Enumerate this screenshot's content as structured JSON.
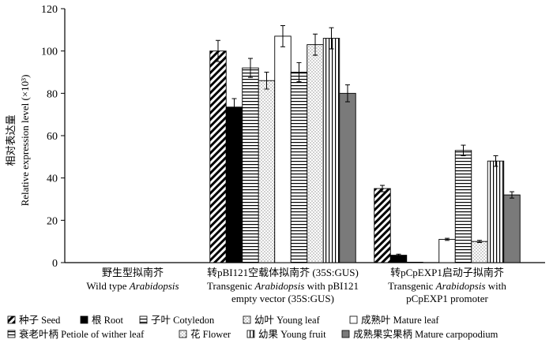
{
  "chart_data": {
    "type": "bar",
    "ylabel_cn": "相对表达量",
    "ylabel_en": "Relative expression level (×10³)",
    "ylim": [
      0,
      120
    ],
    "yticks": [
      0,
      20,
      40,
      60,
      80,
      100,
      120
    ],
    "groups": [
      {
        "cn": "野生型拟南芥",
        "en_lines": [
          [
            "Wild type ",
            "Arabidopsis",
            ""
          ]
        ]
      },
      {
        "cn": "转pBI121空载体拟南芥 (35S:GUS)",
        "en_lines": [
          [
            "Transgenic ",
            "Arabidopsis",
            " with pBI121"
          ],
          [
            "empty vector (35S:GUS)",
            "",
            ""
          ]
        ]
      },
      {
        "cn": "转pCpEXP1启动子拟南芥",
        "en_lines": [
          [
            "Transgenic ",
            "Arabidopsis",
            " with"
          ],
          [
            "pCpEXP1 promoter",
            "",
            ""
          ]
        ]
      }
    ],
    "series": [
      {
        "name": "种子 Seed",
        "pattern": "diag",
        "values": [
          0,
          100,
          35
        ],
        "errors": [
          0,
          5,
          1.5
        ]
      },
      {
        "name": "根 Root",
        "pattern": "solid-black",
        "values": [
          0,
          73.5,
          3.5
        ],
        "errors": [
          0,
          4,
          0.5
        ]
      },
      {
        "name": "子叶 Cotyledon",
        "pattern": "hlines",
        "values": [
          0,
          92,
          0.2
        ],
        "errors": [
          0,
          4.5,
          0
        ]
      },
      {
        "name": "幼叶 Young leaf",
        "pattern": "dots",
        "values": [
          0,
          86,
          0
        ],
        "errors": [
          0,
          4,
          0
        ]
      },
      {
        "name": "成熟叶 Mature leaf",
        "pattern": "white",
        "values": [
          0,
          107,
          11
        ],
        "errors": [
          0,
          5,
          0.5
        ]
      },
      {
        "name": "衰老叶柄 Petiole of wither leaf",
        "pattern": "hlines",
        "values": [
          0,
          90,
          53
        ],
        "errors": [
          0,
          4.5,
          2.5
        ]
      },
      {
        "name": "花 Flower",
        "pattern": "dots",
        "values": [
          0,
          103,
          10
        ],
        "errors": [
          0,
          5,
          0.5
        ]
      },
      {
        "name": "幼果 Young fruit",
        "pattern": "vlines",
        "values": [
          0,
          106,
          48
        ],
        "errors": [
          0,
          5,
          2.5
        ]
      },
      {
        "name": "成熟果实果柄 Mature carpopodium",
        "pattern": "solid-gray",
        "values": [
          0,
          80,
          32
        ],
        "errors": [
          0,
          4,
          1.5
        ]
      }
    ]
  }
}
